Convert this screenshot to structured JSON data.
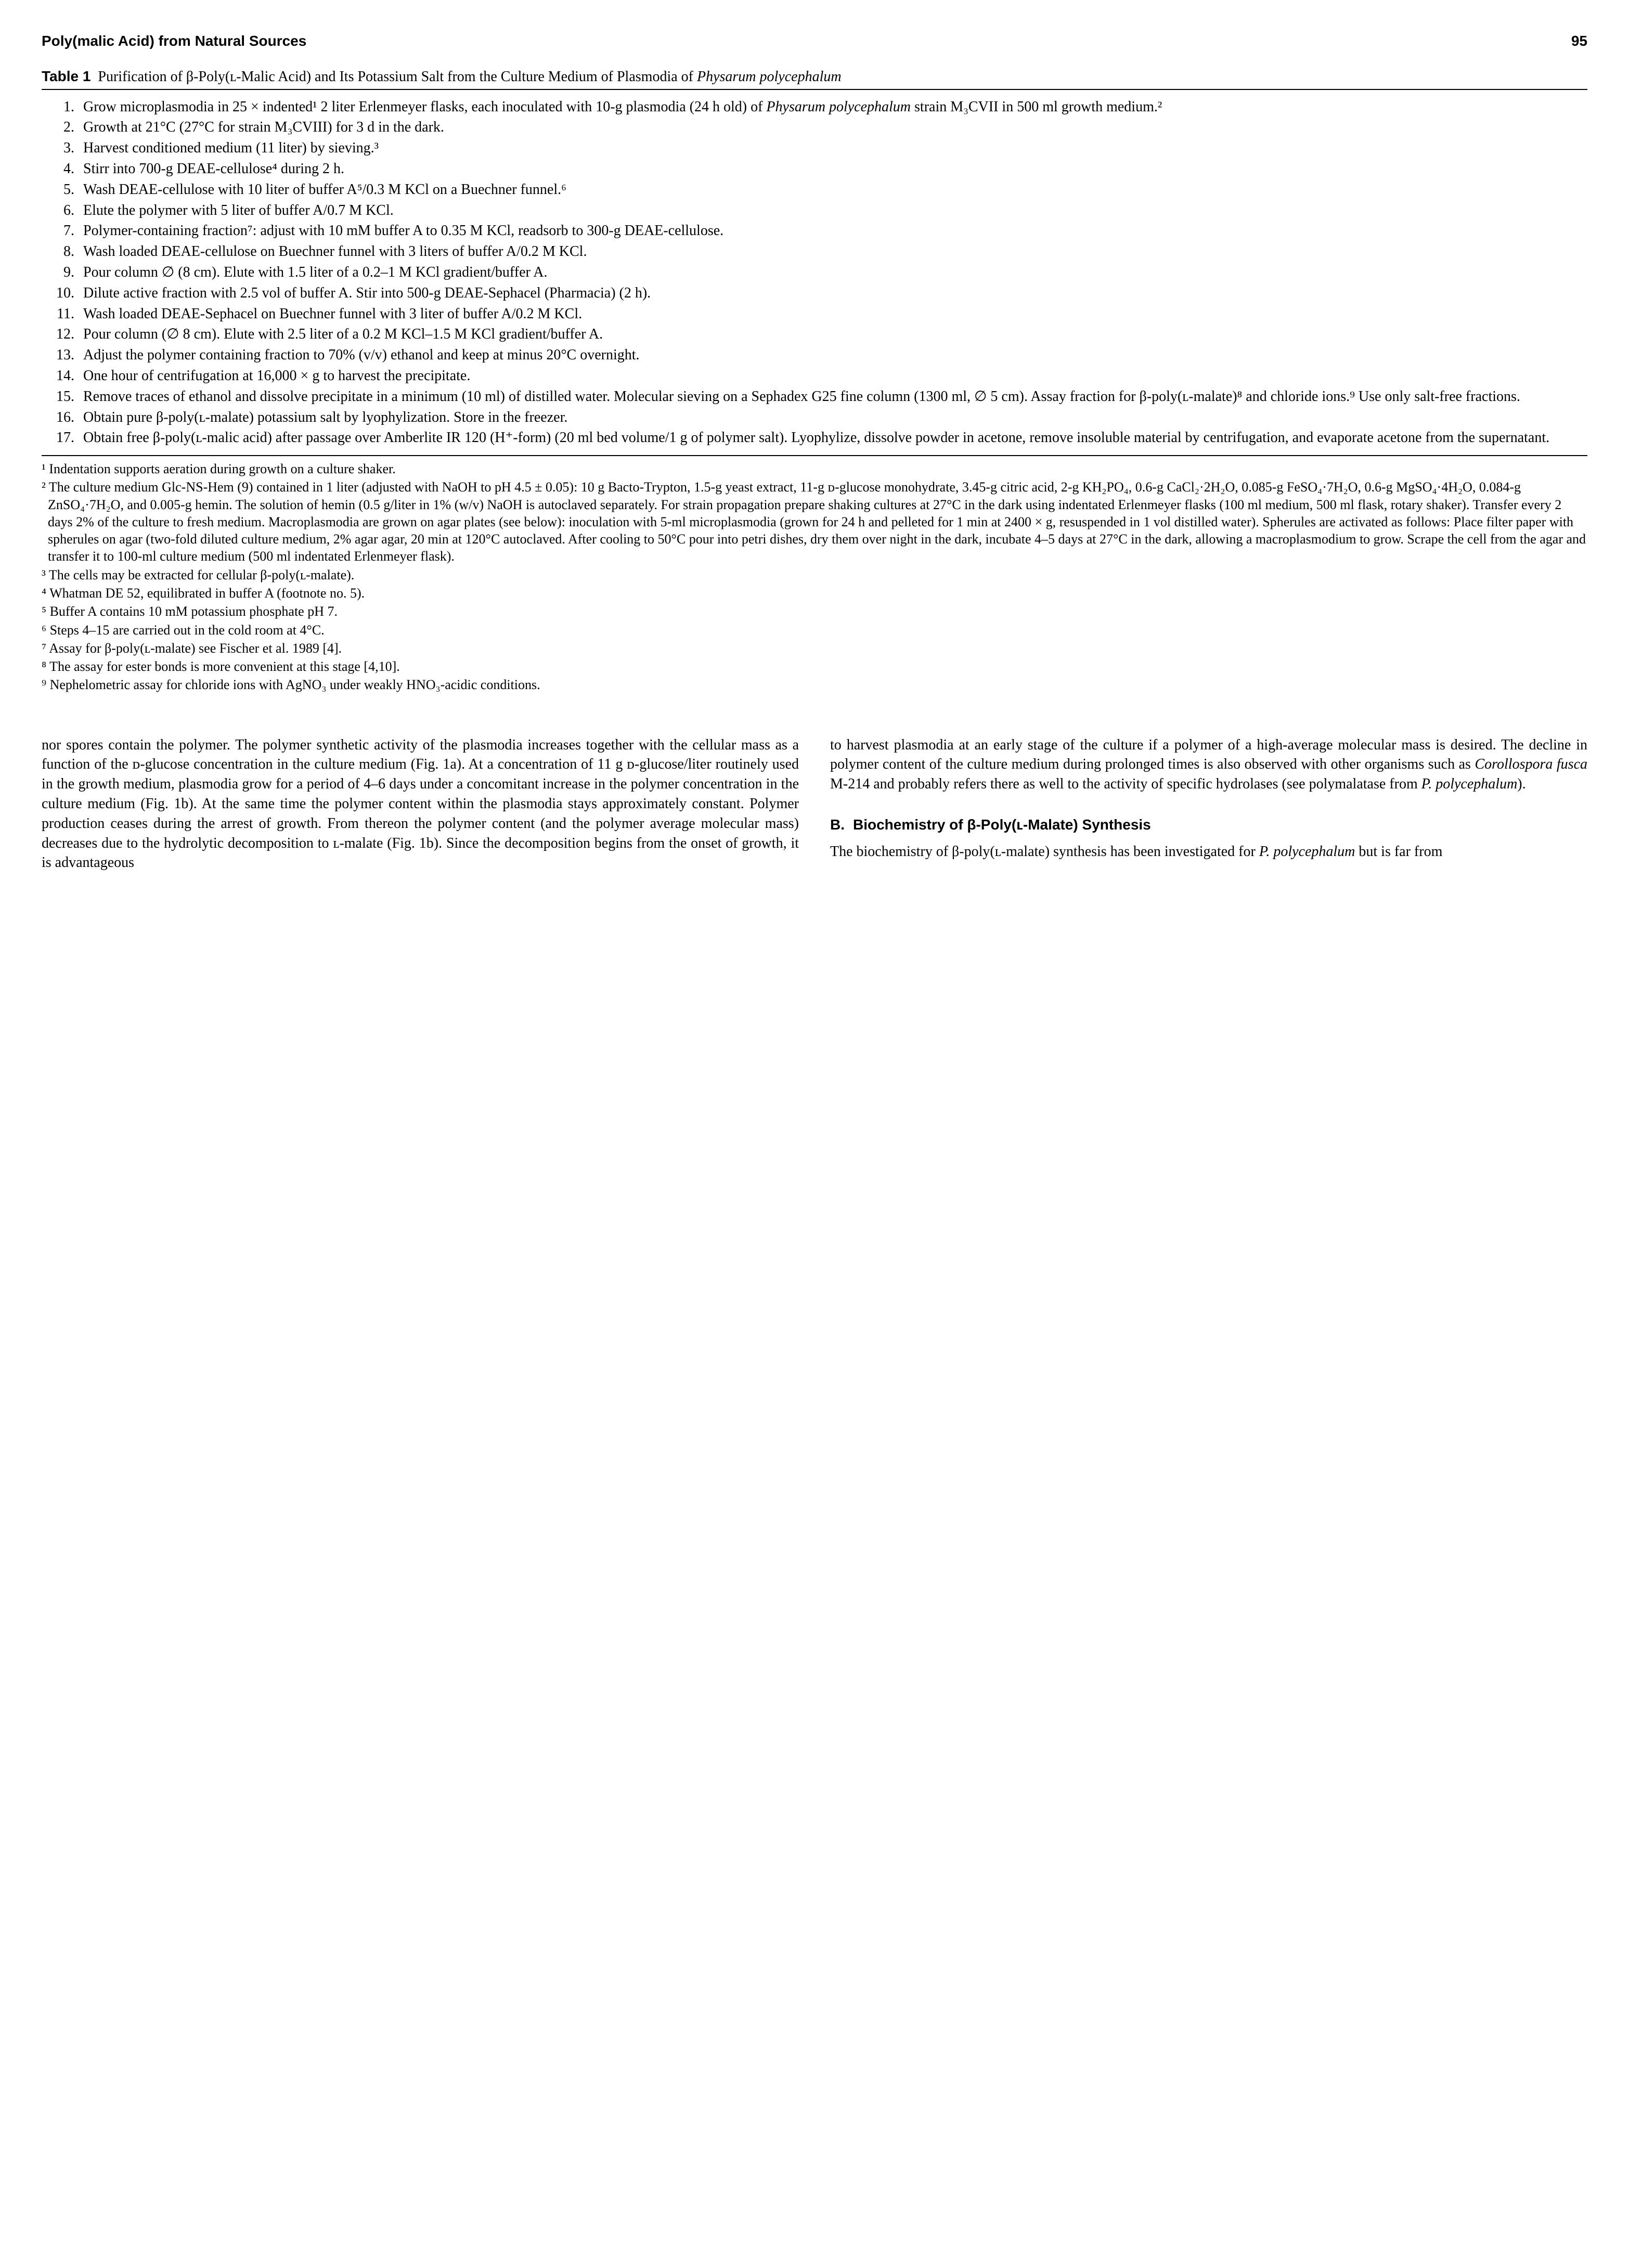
{
  "header": {
    "running_head": "Poly(malic Acid) from Natural Sources",
    "page_number": "95"
  },
  "table": {
    "label": "Table 1",
    "title_html": "Purification of β-Poly(ʟ-Malic Acid) and Its Potassium Salt from the Culture Medium of Plasmodia of <span class='ital'>Physarum polycephalum</span>",
    "steps": [
      "Grow microplasmodia in 25 × indented¹ 2 liter Erlenmeyer flasks, each inoculated with 10-g plasmodia (24 h old) of <span class='ital'>Physarum polycephalum</span> strain M₃CVII in 500 ml growth medium.²",
      "Growth at 21°C (27°C for strain M₃CVIII) for 3 d in the dark.",
      "Harvest conditioned medium (11 liter) by sieving.³",
      "Stirr into 700-g DEAE-cellulose⁴ during 2 h.",
      "Wash DEAE-cellulose with 10 liter of buffer A⁵/0.3 M KCl on a Buechner funnel.⁶",
      "Elute the polymer with 5 liter of buffer A/0.7 M KCl.",
      "Polymer-containing fraction⁷: adjust with 10 mM buffer A to 0.35 M KCl, readsorb to 300-g DEAE-cellulose.",
      "Wash loaded DEAE-cellulose on Buechner funnel with 3 liters of buffer A/0.2 M KCl.",
      "Pour column ∅ (8 cm). Elute with 1.5 liter of a 0.2–1 M KCl gradient/buffer A.",
      "Dilute active fraction with 2.5 vol of buffer A. Stir into 500-g DEAE-Sephacel (Pharmacia) (2 h).",
      "Wash loaded DEAE-Sephacel on Buechner funnel with 3 liter of buffer A/0.2 M KCl.",
      "Pour column (∅ 8 cm). Elute with 2.5 liter of a 0.2 M KCl–1.5 M KCl gradient/buffer A.",
      "Adjust the polymer containing fraction to 70% (v/v) ethanol and keep at minus 20°C overnight.",
      "One hour of centrifugation at 16,000 × g to harvest the precipitate.",
      "Remove traces of ethanol and dissolve precipitate in a minimum (10 ml) of distilled water. Molecular sieving on a Sephadex G25 fine column (1300 ml, ∅ 5 cm). Assay fraction for β-poly(ʟ-malate)⁸ and chloride ions.⁹ Use only salt-free fractions.",
      "Obtain pure β-poly(ʟ-malate) potassium salt by lyophylization. Store in the freezer.",
      "Obtain free β-poly(ʟ-malic acid) after passage over Amberlite IR 120 (H⁺-form) (20 ml bed volume/1 g of polymer salt). Lyophylize, dissolve powder in acetone, remove insoluble material by centrifugation, and evaporate acetone from the supernatant."
    ],
    "footnotes": [
      "¹ Indentation supports aeration during growth on a culture shaker.",
      "² The culture medium Glc-NS-Hem (9) contained in 1 liter (adjusted with NaOH to pH 4.5 ± 0.05): 10 g Bacto-Trypton, 1.5-g yeast extract, 11-g ᴅ-glucose monohydrate, 3.45-g citric acid, 2-g KH₂PO₄, 0.6-g CaCl₂·2H₂O, 0.085-g FeSO₄·7H₂O, 0.6-g MgSO₄·4H₂O, 0.084-g ZnSO₄·7H₂O, and 0.005-g hemin. The solution of hemin (0.5 g/liter in 1% (w/v) NaOH is autoclaved separately. For strain propagation prepare shaking cultures at 27°C in the dark using indentated Erlenmeyer flasks (100 ml medium, 500 ml flask, rotary shaker). Transfer every 2 days 2% of the culture to fresh medium. Macroplasmodia are grown on agar plates (see below): inoculation with 5-ml microplasmodia (grown for 24 h and pelleted for 1 min at 2400 × g, resuspended in 1 vol distilled water). Spherules are activated as follows: Place filter paper with spherules on agar (two-fold diluted culture medium, 2% agar agar, 20 min at 120°C autoclaved. After cooling to 50°C pour into petri dishes, dry them over night in the dark, incubate 4–5 days at 27°C in the dark, allowing a macroplasmodium to grow. Scrape the cell from the agar and transfer it to 100-ml culture medium (500 ml indentated Erlenmeyer flask).",
      "³ The cells may be extracted for cellular β-poly(ʟ-malate).",
      "⁴ Whatman DE 52, equilibrated in buffer A (footnote no. 5).",
      "⁵ Buffer A contains 10 mM potassium phosphate pH 7.",
      "⁶ Steps 4–15 are carried out in the cold room at 4°C.",
      "⁷ Assay for β-poly(ʟ-malate) see Fischer et al. 1989 [4].",
      "⁸ The assay for ester bonds is more convenient at this stage [4,10].",
      "⁹ Nephelometric assay for chloride ions with AgNO₃ under weakly HNO₃-acidic conditions."
    ]
  },
  "body": {
    "left_col": "nor spores contain the polymer. The polymer synthetic activity of the plasmodia increases together with the cellular mass as a function of the ᴅ-glucose concentration in the culture medium (Fig. 1a). At a concentration of 11 g ᴅ-glucose/liter routinely used in the growth medium, plasmodia grow for a period of 4–6 days under a concomitant increase in the polymer concentration in the culture medium (Fig. 1b). At the same time the polymer content within the plasmodia stays approximately constant. Polymer production ceases during the arrest of growth. From thereon the polymer content (and the polymer average molecular mass) decreases due to the hydrolytic decomposition to ʟ-malate (Fig. 1b). Since the decomposition begins from the onset of growth, it is advantageous",
    "right_top": "to harvest plasmodia at an early stage of the culture if a polymer of a high-average molecular mass is desired. The decline in polymer content of the culture medium during prolonged times is also observed with other organisms such as <span class='ital'>Corollospora fusca</span> M-214 and probably refers there as well to the activity of specific hydrolases (see polymalatase from <span class='ital'>P. polycephalum</span>).",
    "section_label": "B.",
    "section_title": "Biochemistry of β-Poly(ʟ-Malate) Synthesis",
    "right_bottom": "The biochemistry of β-poly(ʟ-malate) synthesis has been investigated for <span class='ital'>P. polycephalum</span> but is far from"
  }
}
